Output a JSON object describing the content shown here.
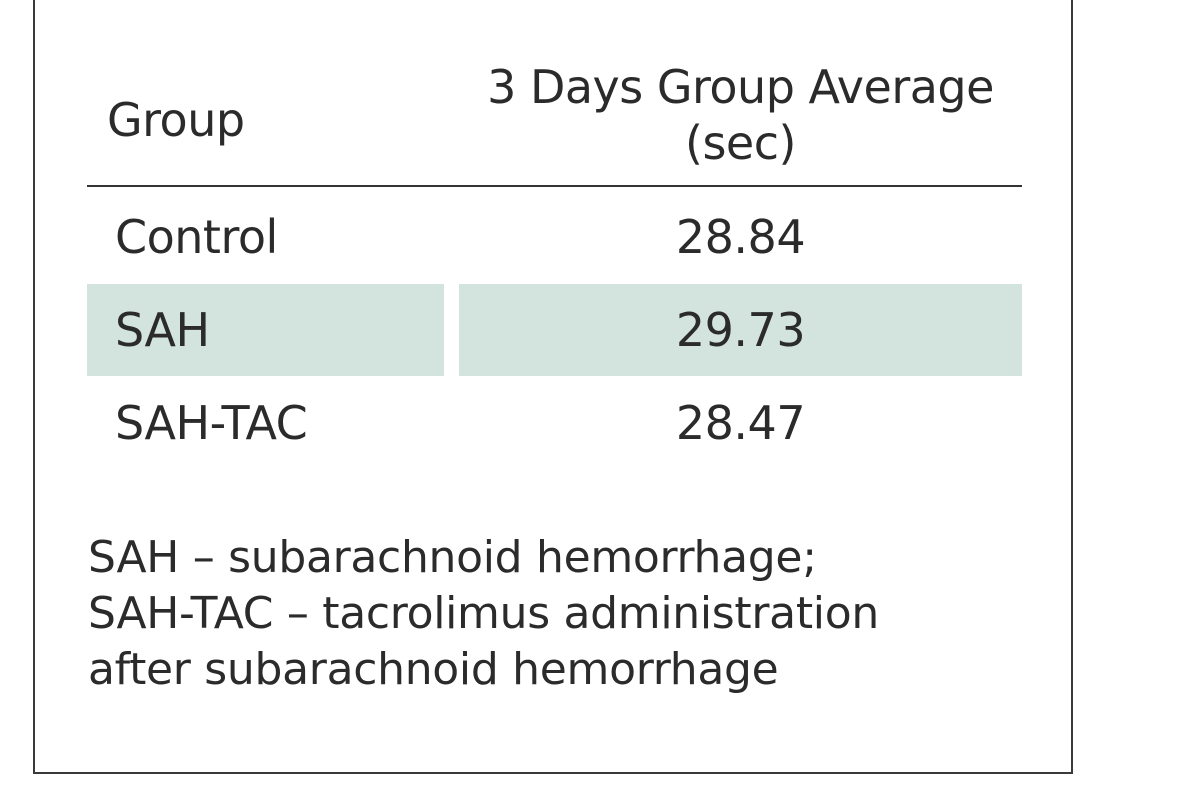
{
  "table": {
    "headers": {
      "group": "Group",
      "value_line1": "3 Days Group Average",
      "value_line2": "(sec)"
    },
    "rows": [
      {
        "group": "Control",
        "value": "28.84",
        "shaded": false
      },
      {
        "group": "SAH",
        "value": "29.73",
        "shaded": true
      },
      {
        "group": "SAH-TAC",
        "value": "28.47",
        "shaded": false
      }
    ],
    "shade_color": "#d3e3de"
  },
  "footnote": {
    "lines": [
      "SAH – subarachnoid hemorrhage;",
      "SAH-TAC – tacrolimus administration",
      "after subarachnoid hemorrhage"
    ]
  }
}
